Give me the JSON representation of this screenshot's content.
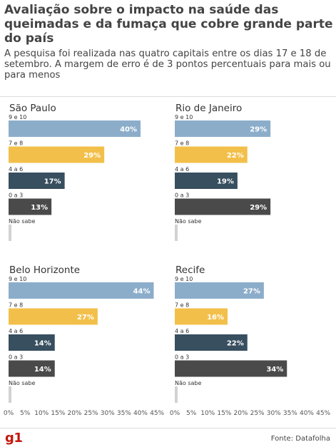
{
  "header": {
    "title": "Avaliação sobre o impacto na saúde das queimadas e da fumaça que cobre grande parte do país",
    "subtitle": "A pesquisa foi realizada nas quatro capitais entre os dias 17 e 18 de setembro. A margem de erro é de 3 pontos percentuais para mais ou para menos"
  },
  "colors": {
    "9 e 10": "#8badca",
    "7 e 8": "#f2c04a",
    "4 a 6": "#374f5f",
    "0 a 3": "#4a4a4a",
    "Não sabe": "#d2d2d2",
    "brand": "#c4170c"
  },
  "chart_data": [
    {
      "type": "bar",
      "orientation": "horizontal",
      "title": "São Paulo",
      "categories": [
        "9 e 10",
        "7 e 8",
        "4 a 6",
        "0 a 3",
        "Não sabe"
      ],
      "values": [
        40,
        29,
        17,
        13,
        1
      ],
      "labels": [
        "40%",
        "29%",
        "17%",
        "13%",
        ""
      ],
      "xlim": [
        0,
        45
      ]
    },
    {
      "type": "bar",
      "orientation": "horizontal",
      "title": "Rio de Janeiro",
      "categories": [
        "9 e 10",
        "7 e 8",
        "4 a 6",
        "0 a 3",
        "Não sabe"
      ],
      "values": [
        29,
        22,
        19,
        29,
        1
      ],
      "labels": [
        "29%",
        "22%",
        "19%",
        "29%",
        ""
      ],
      "xlim": [
        0,
        45
      ]
    },
    {
      "type": "bar",
      "orientation": "horizontal",
      "title": "Belo Horizonte",
      "categories": [
        "9 e 10",
        "7 e 8",
        "4 a 6",
        "0 a 3",
        "Não sabe"
      ],
      "values": [
        44,
        27,
        14,
        14,
        1
      ],
      "labels": [
        "44%",
        "27%",
        "14%",
        "14%",
        ""
      ],
      "xlim": [
        0,
        45
      ]
    },
    {
      "type": "bar",
      "orientation": "horizontal",
      "title": "Recife",
      "categories": [
        "9 e 10",
        "7 e 8",
        "4 a 6",
        "0 a 3",
        "Não sabe"
      ],
      "values": [
        27,
        16,
        22,
        34,
        1
      ],
      "labels": [
        "27%",
        "16%",
        "22%",
        "34%",
        ""
      ],
      "xlim": [
        0,
        45
      ]
    }
  ],
  "axis": {
    "ticks": [
      "0%",
      "5%",
      "10%",
      "15%",
      "20%",
      "25%",
      "30%",
      "35%",
      "40%",
      "45%"
    ]
  },
  "footer": {
    "logo": "g1",
    "source": "Fonte: Datafolha"
  }
}
